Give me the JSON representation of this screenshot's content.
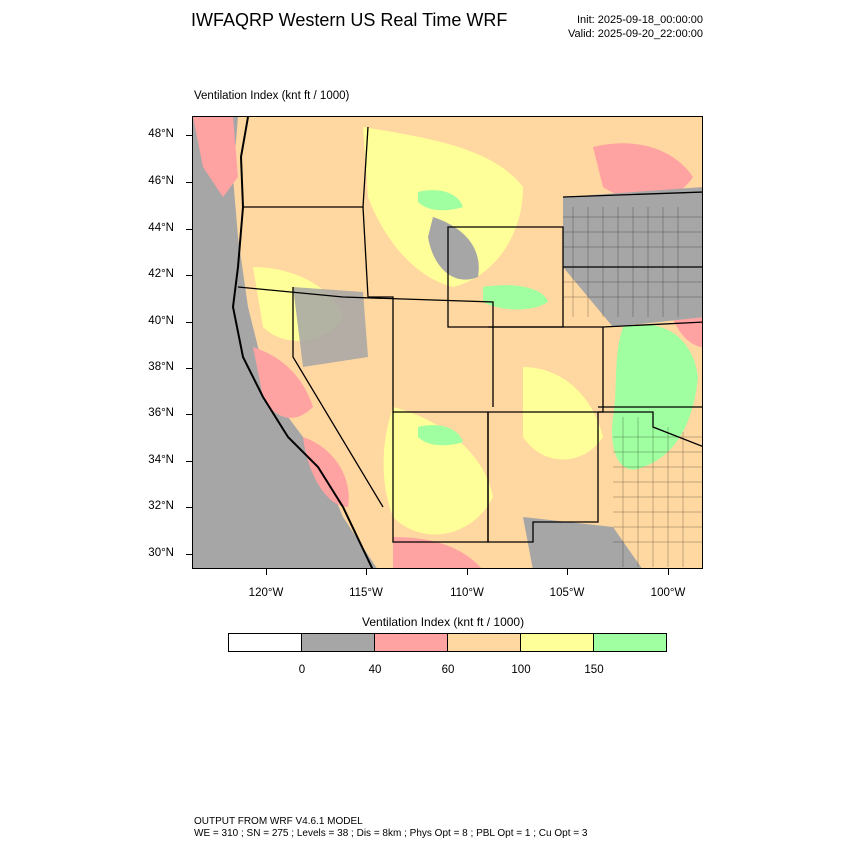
{
  "header": {
    "title": "IWFAQRP Western US Real Time WRF",
    "init": "Init: 2025-09-18_00:00:00",
    "valid": "Valid: 2025-09-20_22:00:00"
  },
  "map": {
    "field_label": "Ventilation Index   (knt ft / 1000)",
    "lat_labels": [
      "48°N",
      "46°N",
      "44°N",
      "42°N",
      "40°N",
      "38°N",
      "36°N",
      "34°N",
      "32°N",
      "30°N"
    ],
    "lon_labels": [
      "120°W",
      "115°W",
      "110°W",
      "105°W",
      "100°W"
    ],
    "background_color": "#a6a6a6"
  },
  "colorbar": {
    "title": "Ventilation Index   (knt ft / 1000)",
    "tick_labels": [
      "0",
      "40",
      "60",
      "100",
      "150"
    ],
    "colors": [
      "#ffffff",
      "#a6a6a6",
      "#ffa2a2",
      "#ffd7a0",
      "#ffff99",
      "#a0ffa0"
    ]
  },
  "footer": {
    "line1": "OUTPUT FROM WRF V4.6.1 MODEL",
    "line2": "WE = 310 ; SN = 275 ; Levels = 38 ; Dis = 8km ; Phys Opt = 8 ; PBL Opt = 1 ; Cu Opt = 3"
  }
}
